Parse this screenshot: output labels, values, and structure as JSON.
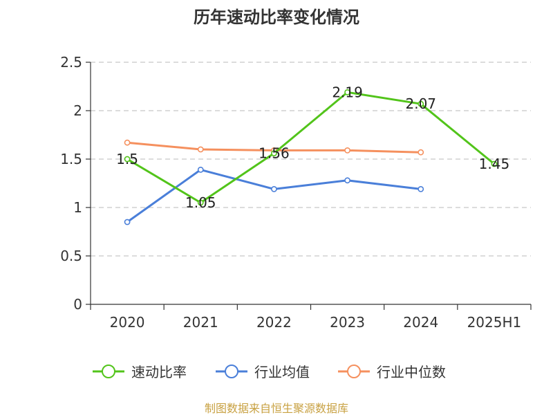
{
  "colors": {
    "speed_ratio": "#52c41a",
    "industry_avg": "#4a7fd9",
    "industry_median": "#f5905e",
    "grid": "#c8c8c8",
    "axis": "#333333",
    "source": "#c8a142"
  },
  "chart_data": {
    "type": "line",
    "title": "历年速动比率变化情况",
    "categories": [
      "2020",
      "2021",
      "2022",
      "2023",
      "2024",
      "2025H1"
    ],
    "ylim": [
      0,
      2.5
    ],
    "yticks": [
      "0",
      "0.5",
      "1",
      "1.5",
      "2",
      "2.5"
    ],
    "ytick_values": [
      0,
      0.5,
      1,
      1.5,
      2,
      2.5
    ],
    "grid": true,
    "legend_position": "bottom",
    "series": [
      {
        "name": "速动比率",
        "color_key": "speed_ratio",
        "values": [
          1.5,
          1.05,
          1.56,
          2.19,
          2.07,
          1.45
        ],
        "labels": [
          "1.5",
          "1.05",
          "1.56",
          "2.19",
          "2.07",
          "1.45"
        ]
      },
      {
        "name": "行业均值",
        "color_key": "industry_avg",
        "values": [
          0.85,
          1.39,
          1.19,
          1.28,
          1.19,
          null
        ],
        "labels": null
      },
      {
        "name": "行业中位数",
        "color_key": "industry_median",
        "values": [
          1.67,
          1.6,
          1.59,
          1.59,
          1.57,
          null
        ],
        "labels": null
      }
    ]
  },
  "footer": {
    "source": "制图数据来自恒生聚源数据库"
  }
}
